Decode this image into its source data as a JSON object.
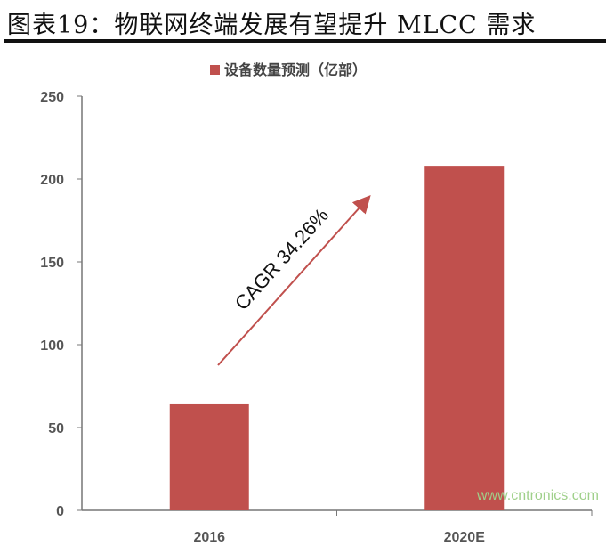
{
  "figure_title": "图表19：物联网终端发展有望提升 MLCC 需求",
  "watermark": "www.cntronics.com",
  "chart_data": {
    "type": "bar",
    "categories": [
      "2016",
      "2020E"
    ],
    "series": [
      {
        "name": "设备数量预测（亿部）",
        "values": [
          64,
          208
        ],
        "color": "#c0504d"
      }
    ],
    "ylim": [
      0,
      250
    ],
    "yticks": [
      "0",
      "50",
      "100",
      "150",
      "200",
      "250"
    ],
    "legend_position": "top",
    "grid": false,
    "annotation": "CAGR 34.26%"
  }
}
